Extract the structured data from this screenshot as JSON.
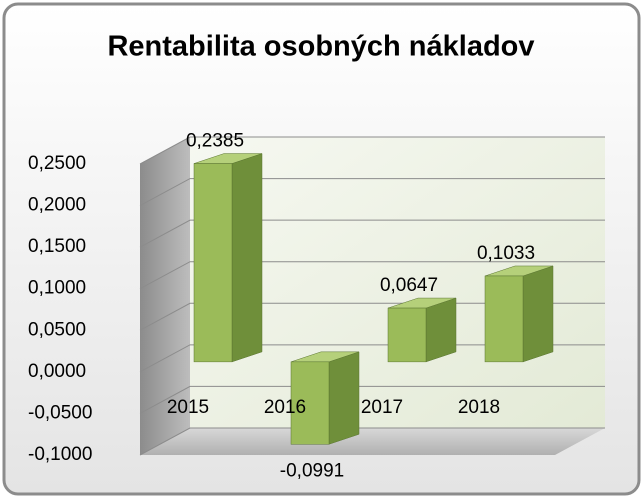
{
  "chart_data": {
    "type": "bar3d",
    "title": "Rentabilita osobných nákladov",
    "categories": [
      "2015",
      "2016",
      "2017",
      "2018"
    ],
    "values": [
      0.2385,
      -0.0991,
      0.0647,
      0.1033
    ],
    "value_labels": [
      "0,2385",
      "-0,0991",
      "0,0647",
      "0,1033"
    ],
    "color": "#9bbb59",
    "ylim": [
      -0.1,
      0.25
    ],
    "yticks": [
      {
        "value": -0.1,
        "label": "-0,1000"
      },
      {
        "value": -0.05,
        "label": "-0,0500"
      },
      {
        "value": 0,
        "label": "0,0000"
      },
      {
        "value": 0.05,
        "label": "0,0500"
      },
      {
        "value": 0.1,
        "label": "0,1000"
      },
      {
        "value": 0.15,
        "label": "0,1500"
      },
      {
        "value": 0.2,
        "label": "0,2000"
      },
      {
        "value": 0.25,
        "label": "0,2500"
      }
    ],
    "grid": true
  }
}
